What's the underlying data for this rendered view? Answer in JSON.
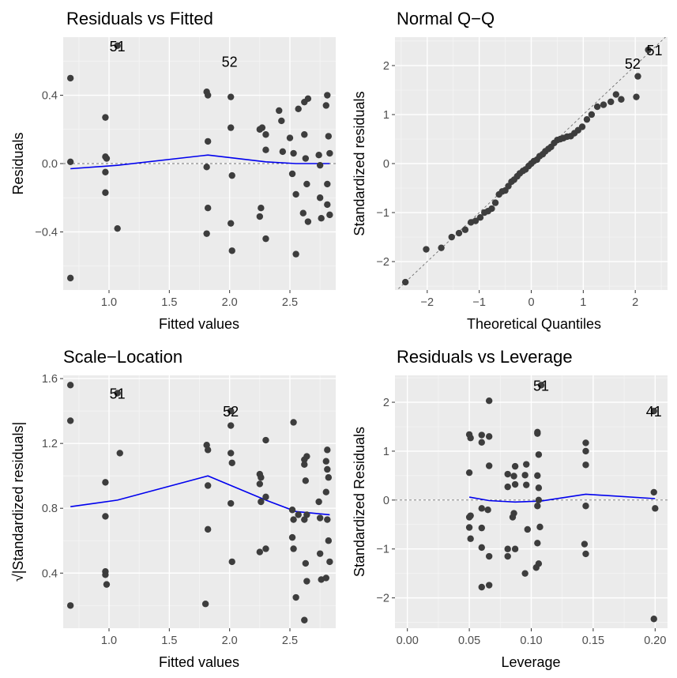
{
  "colors": {
    "panel": "#ebebeb",
    "grid_major": "#ffffff",
    "point": "#3d3d3d",
    "smooth": "#0000ee",
    "refline": "#6e6e6e"
  },
  "chart_data": [
    {
      "type": "scatter",
      "title": "Residuals vs Fitted",
      "xlabel": "Fitted values",
      "ylabel": "Residuals",
      "xlim": [
        0.62,
        2.88
      ],
      "ylim": [
        -0.74,
        0.74
      ],
      "xticks": [
        1.0,
        1.5,
        2.0,
        2.5
      ],
      "xtick_labels": [
        "1.0",
        "1.5",
        "2.0",
        "2.5"
      ],
      "yticks": [
        -0.4,
        0.0,
        0.4
      ],
      "ytick_labels": [
        "−0.4",
        "0.0",
        "0.4"
      ],
      "refline": {
        "kind": "hline",
        "y": 0
      },
      "points": [
        [
          0.68,
          0.5
        ],
        [
          0.68,
          0.01
        ],
        [
          0.68,
          -0.67
        ],
        [
          0.97,
          0.27
        ],
        [
          0.97,
          0.04
        ],
        [
          0.98,
          0.03
        ],
        [
          0.97,
          -0.05
        ],
        [
          0.97,
          -0.17
        ],
        [
          1.07,
          0.69
        ],
        [
          1.07,
          -0.38
        ],
        [
          1.81,
          0.42
        ],
        [
          1.82,
          0.4
        ],
        [
          1.82,
          0.13
        ],
        [
          1.81,
          -0.02
        ],
        [
          1.82,
          -0.26
        ],
        [
          1.81,
          -0.41
        ],
        [
          2.01,
          0.39
        ],
        [
          2.01,
          0.21
        ],
        [
          2.02,
          -0.07
        ],
        [
          2.01,
          -0.35
        ],
        [
          2.02,
          -0.51
        ],
        [
          2.25,
          0.2
        ],
        [
          2.27,
          0.21
        ],
        [
          2.26,
          -0.26
        ],
        [
          2.25,
          -0.31
        ],
        [
          2.3,
          0.17
        ],
        [
          2.3,
          0.08
        ],
        [
          2.3,
          -0.44
        ],
        [
          2.41,
          0.31
        ],
        [
          2.43,
          0.25
        ],
        [
          2.44,
          0.07
        ],
        [
          2.5,
          0.15
        ],
        [
          2.53,
          0.06
        ],
        [
          2.52,
          -0.06
        ],
        [
          2.55,
          -0.53
        ],
        [
          2.55,
          -0.18
        ],
        [
          2.57,
          0.32
        ],
        [
          2.62,
          0.36
        ],
        [
          2.65,
          0.38
        ],
        [
          2.62,
          0.17
        ],
        [
          2.63,
          0.03
        ],
        [
          2.64,
          -0.12
        ],
        [
          2.61,
          -0.29
        ],
        [
          2.65,
          -0.34
        ],
        [
          2.74,
          0.05
        ],
        [
          2.75,
          -0.01
        ],
        [
          2.75,
          -0.2
        ],
        [
          2.76,
          -0.32
        ],
        [
          2.81,
          0.4
        ],
        [
          2.8,
          0.34
        ],
        [
          2.82,
          0.16
        ],
        [
          2.83,
          0.06
        ],
        [
          2.81,
          -0.12
        ],
        [
          2.81,
          -0.24
        ],
        [
          2.83,
          -0.3
        ]
      ],
      "smooth": [
        [
          0.68,
          -0.03
        ],
        [
          1.07,
          -0.01
        ],
        [
          1.82,
          0.05
        ],
        [
          2.3,
          0.01
        ],
        [
          2.55,
          0.0
        ],
        [
          2.83,
          0.0
        ]
      ],
      "labels": [
        {
          "text": "51",
          "x": 1.07,
          "y": 0.69
        },
        {
          "text": "52",
          "x": 2.0,
          "y": 0.6
        }
      ]
    },
    {
      "type": "scatter",
      "title": "Normal Q−Q",
      "xlabel": "Theoretical Quantiles",
      "ylabel": "Standardized residuals",
      "xlim": [
        -2.62,
        2.62
      ],
      "ylim": [
        -2.58,
        2.58
      ],
      "xticks": [
        -2,
        -1,
        0,
        1,
        2
      ],
      "xtick_labels": [
        "−2",
        "−1",
        "0",
        "1",
        "2"
      ],
      "yticks": [
        -2,
        -1,
        0,
        1,
        2
      ],
      "ytick_labels": [
        "−2",
        "−1",
        "0",
        "1",
        "2"
      ],
      "refline": {
        "kind": "diag",
        "slope": 1,
        "intercept": 0
      },
      "points": [
        [
          -2.42,
          -2.42
        ],
        [
          -2.02,
          -1.75
        ],
        [
          -1.73,
          -1.72
        ],
        [
          -1.53,
          -1.5
        ],
        [
          -1.39,
          -1.42
        ],
        [
          -1.27,
          -1.35
        ],
        [
          -1.16,
          -1.2
        ],
        [
          -1.07,
          -1.17
        ],
        [
          -0.98,
          -1.1
        ],
        [
          -0.9,
          -1.0
        ],
        [
          -0.83,
          -0.97
        ],
        [
          -0.76,
          -0.92
        ],
        [
          -0.69,
          -0.8
        ],
        [
          -0.62,
          -0.63
        ],
        [
          -0.56,
          -0.57
        ],
        [
          -0.5,
          -0.55
        ],
        [
          -0.44,
          -0.46
        ],
        [
          -0.38,
          -0.37
        ],
        [
          -0.33,
          -0.33
        ],
        [
          -0.27,
          -0.26
        ],
        [
          -0.22,
          -0.2
        ],
        [
          -0.16,
          -0.15
        ],
        [
          -0.11,
          -0.12
        ],
        [
          -0.05,
          -0.05
        ],
        [
          0.0,
          0.0
        ],
        [
          0.05,
          0.05
        ],
        [
          0.11,
          0.08
        ],
        [
          0.16,
          0.15
        ],
        [
          0.22,
          0.19
        ],
        [
          0.27,
          0.25
        ],
        [
          0.33,
          0.3
        ],
        [
          0.38,
          0.34
        ],
        [
          0.44,
          0.42
        ],
        [
          0.5,
          0.48
        ],
        [
          0.56,
          0.5
        ],
        [
          0.62,
          0.52
        ],
        [
          0.69,
          0.55
        ],
        [
          0.76,
          0.56
        ],
        [
          0.83,
          0.62
        ],
        [
          0.9,
          0.68
        ],
        [
          0.98,
          0.75
        ],
        [
          1.07,
          0.9
        ],
        [
          1.16,
          1.0
        ],
        [
          1.27,
          1.16
        ],
        [
          1.39,
          1.2
        ],
        [
          1.53,
          1.26
        ],
        [
          1.73,
          1.31
        ],
        [
          2.02,
          1.36
        ],
        [
          1.63,
          1.41
        ],
        [
          2.05,
          1.78
        ],
        [
          2.25,
          2.32
        ]
      ],
      "labels": [
        {
          "text": "52",
          "x": 1.95,
          "y": 2.05
        },
        {
          "text": "51",
          "x": 2.37,
          "y": 2.32
        }
      ]
    },
    {
      "type": "scatter",
      "title": "Scale−Location",
      "xlabel": "Fitted values",
      "ylabel": "√|Standardized residuals|",
      "xlim": [
        0.62,
        2.88
      ],
      "ylim": [
        0.06,
        1.62
      ],
      "xticks": [
        1.0,
        1.5,
        2.0,
        2.5
      ],
      "xtick_labels": [
        "1.0",
        "1.5",
        "2.0",
        "2.5"
      ],
      "yticks": [
        0.4,
        0.8,
        1.2,
        1.6
      ],
      "ytick_labels": [
        "0.4",
        "0.8",
        "1.2",
        "1.6"
      ],
      "points": [
        [
          0.68,
          1.56
        ],
        [
          0.68,
          1.34
        ],
        [
          0.68,
          0.2
        ],
        [
          1.07,
          1.51
        ],
        [
          1.09,
          1.14
        ],
        [
          0.97,
          0.96
        ],
        [
          0.97,
          0.75
        ],
        [
          0.97,
          0.41
        ],
        [
          0.97,
          0.39
        ],
        [
          0.98,
          0.33
        ],
        [
          1.81,
          1.19
        ],
        [
          1.82,
          1.16
        ],
        [
          1.82,
          0.94
        ],
        [
          1.82,
          0.67
        ],
        [
          1.8,
          0.21
        ],
        [
          2.01,
          1.4
        ],
        [
          2.01,
          1.31
        ],
        [
          2.01,
          1.14
        ],
        [
          2.02,
          1.08
        ],
        [
          2.01,
          0.83
        ],
        [
          2.02,
          0.47
        ],
        [
          2.25,
          1.01
        ],
        [
          2.26,
          0.99
        ],
        [
          2.25,
          0.95
        ],
        [
          2.26,
          0.84
        ],
        [
          2.25,
          0.53
        ],
        [
          2.3,
          1.22
        ],
        [
          2.3,
          0.87
        ],
        [
          2.3,
          0.55
        ],
        [
          2.53,
          1.33
        ],
        [
          2.52,
          0.79
        ],
        [
          2.53,
          0.73
        ],
        [
          2.52,
          0.62
        ],
        [
          2.53,
          0.55
        ],
        [
          2.55,
          0.25
        ],
        [
          2.57,
          0.76
        ],
        [
          2.62,
          1.1
        ],
        [
          2.64,
          1.12
        ],
        [
          2.62,
          1.07
        ],
        [
          2.63,
          0.97
        ],
        [
          2.64,
          0.76
        ],
        [
          2.62,
          0.73
        ],
        [
          2.63,
          0.46
        ],
        [
          2.64,
          0.35
        ],
        [
          2.62,
          0.11
        ],
        [
          2.74,
          0.84
        ],
        [
          2.75,
          0.74
        ],
        [
          2.75,
          0.52
        ],
        [
          2.76,
          0.36
        ],
        [
          2.81,
          1.16
        ],
        [
          2.8,
          1.09
        ],
        [
          2.81,
          1.04
        ],
        [
          2.82,
          0.99
        ],
        [
          2.8,
          0.9
        ],
        [
          2.81,
          0.73
        ],
        [
          2.82,
          0.6
        ],
        [
          2.83,
          0.47
        ],
        [
          2.8,
          0.37
        ]
      ],
      "smooth": [
        [
          0.68,
          0.81
        ],
        [
          1.07,
          0.85
        ],
        [
          1.82,
          1.0
        ],
        [
          2.3,
          0.85
        ],
        [
          2.55,
          0.78
        ],
        [
          2.83,
          0.76
        ]
      ],
      "labels": [
        {
          "text": "51",
          "x": 1.07,
          "y": 1.51
        },
        {
          "text": "52",
          "x": 2.01,
          "y": 1.4
        }
      ]
    },
    {
      "type": "scatter",
      "title": "Residuals vs Leverage",
      "xlabel": "Leverage",
      "ylabel": "Standardized Residuals",
      "xlim": [
        -0.01,
        0.21
      ],
      "ylim": [
        -2.62,
        2.55
      ],
      "xticks": [
        0.0,
        0.05,
        0.1,
        0.15,
        0.2
      ],
      "xtick_labels": [
        "0.00",
        "0.05",
        "0.10",
        "0.15",
        "0.20"
      ],
      "yticks": [
        -2,
        -1,
        0,
        1,
        2
      ],
      "ytick_labels": [
        "−2",
        "−1",
        "0",
        "1",
        "2"
      ],
      "refline": {
        "kind": "hline",
        "y": 0
      },
      "points": [
        [
          0.05,
          1.34
        ],
        [
          0.051,
          1.27
        ],
        [
          0.05,
          0.56
        ],
        [
          0.051,
          -0.32
        ],
        [
          0.05,
          -0.35
        ],
        [
          0.051,
          -0.79
        ],
        [
          0.05,
          -0.56
        ],
        [
          0.06,
          1.33
        ],
        [
          0.06,
          1.18
        ],
        [
          0.06,
          -0.17
        ],
        [
          0.06,
          -0.57
        ],
        [
          0.06,
          -0.97
        ],
        [
          0.06,
          -1.78
        ],
        [
          0.066,
          2.03
        ],
        [
          0.066,
          1.3
        ],
        [
          0.066,
          0.7
        ],
        [
          0.065,
          -0.2
        ],
        [
          0.066,
          -1.15
        ],
        [
          0.066,
          -1.74
        ],
        [
          0.081,
          0.53
        ],
        [
          0.081,
          0.27
        ],
        [
          0.081,
          -1.0
        ],
        [
          0.081,
          -1.15
        ],
        [
          0.087,
          0.69
        ],
        [
          0.086,
          0.49
        ],
        [
          0.087,
          0.32
        ],
        [
          0.086,
          -0.27
        ],
        [
          0.085,
          -0.35
        ],
        [
          0.087,
          -1.0
        ],
        [
          0.096,
          0.73
        ],
        [
          0.095,
          0.51
        ],
        [
          0.096,
          0.31
        ],
        [
          0.097,
          -0.6
        ],
        [
          0.095,
          -1.5
        ],
        [
          0.105,
          1.39
        ],
        [
          0.105,
          1.36
        ],
        [
          0.106,
          0.93
        ],
        [
          0.105,
          0.5
        ],
        [
          0.106,
          0.25
        ],
        [
          0.105,
          -0.12
        ],
        [
          0.106,
          0.0
        ],
        [
          0.107,
          -0.55
        ],
        [
          0.105,
          -0.88
        ],
        [
          0.106,
          -1.3
        ],
        [
          0.104,
          -1.38
        ],
        [
          0.108,
          2.35
        ],
        [
          0.144,
          1.17
        ],
        [
          0.144,
          1.0
        ],
        [
          0.144,
          0.72
        ],
        [
          0.144,
          -0.12
        ],
        [
          0.143,
          -0.9
        ],
        [
          0.144,
          -1.1
        ],
        [
          0.199,
          0.16
        ],
        [
          0.2,
          -0.17
        ],
        [
          0.199,
          1.82
        ],
        [
          0.199,
          -2.43
        ]
      ],
      "smooth": [
        [
          0.05,
          0.06
        ],
        [
          0.066,
          -0.01
        ],
        [
          0.087,
          -0.04
        ],
        [
          0.108,
          -0.02
        ],
        [
          0.144,
          0.12
        ],
        [
          0.2,
          0.03
        ]
      ],
      "labels": [
        {
          "text": "51",
          "x": 0.108,
          "y": 2.35
        },
        {
          "text": "41",
          "x": 0.199,
          "y": 1.82
        }
      ]
    }
  ]
}
